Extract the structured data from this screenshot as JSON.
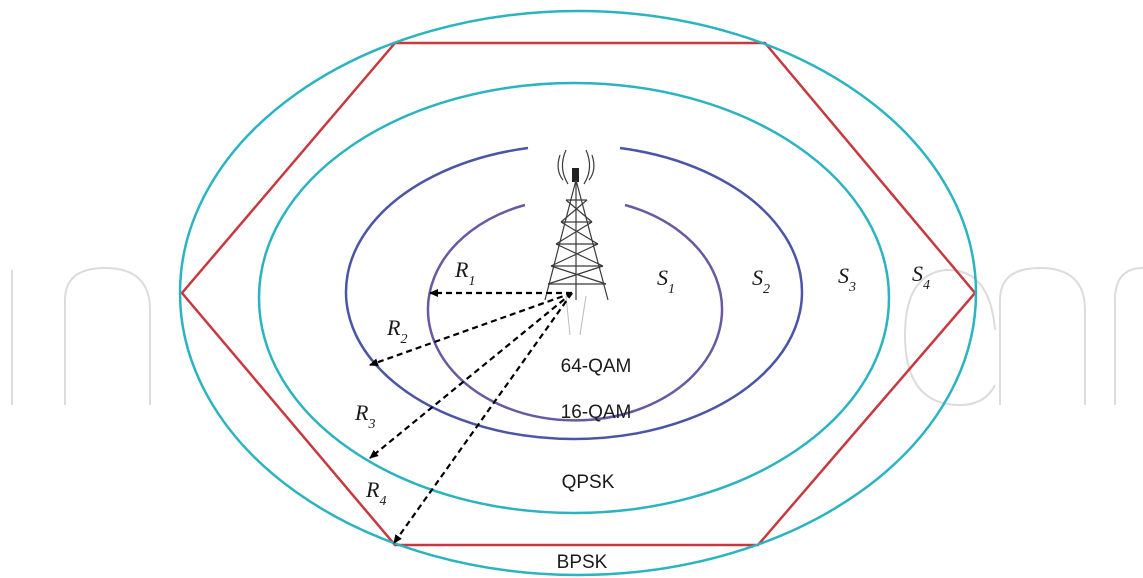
{
  "diagram": {
    "center_label": "",
    "radius_labels": [
      {
        "main": "R",
        "sub": "1"
      },
      {
        "main": "R",
        "sub": "2"
      },
      {
        "main": "R",
        "sub": "3"
      },
      {
        "main": "R",
        "sub": "4"
      }
    ],
    "region_labels": [
      {
        "main": "S",
        "sub": "1"
      },
      {
        "main": "S",
        "sub": "2"
      },
      {
        "main": "S",
        "sub": "3"
      },
      {
        "main": "S",
        "sub": "4"
      }
    ],
    "modulation_labels": [
      "64-QAM",
      "16-QAM",
      "QPSK",
      "BPSK"
    ],
    "colors": {
      "outer_rings": "#2ab3c0",
      "inner_rings": "#4a55a6",
      "cell_hexagon": "#c8393f",
      "arrows": "#000000"
    },
    "icons": {
      "tower": "cell-tower-icon",
      "watermark": "watermark-text"
    }
  }
}
